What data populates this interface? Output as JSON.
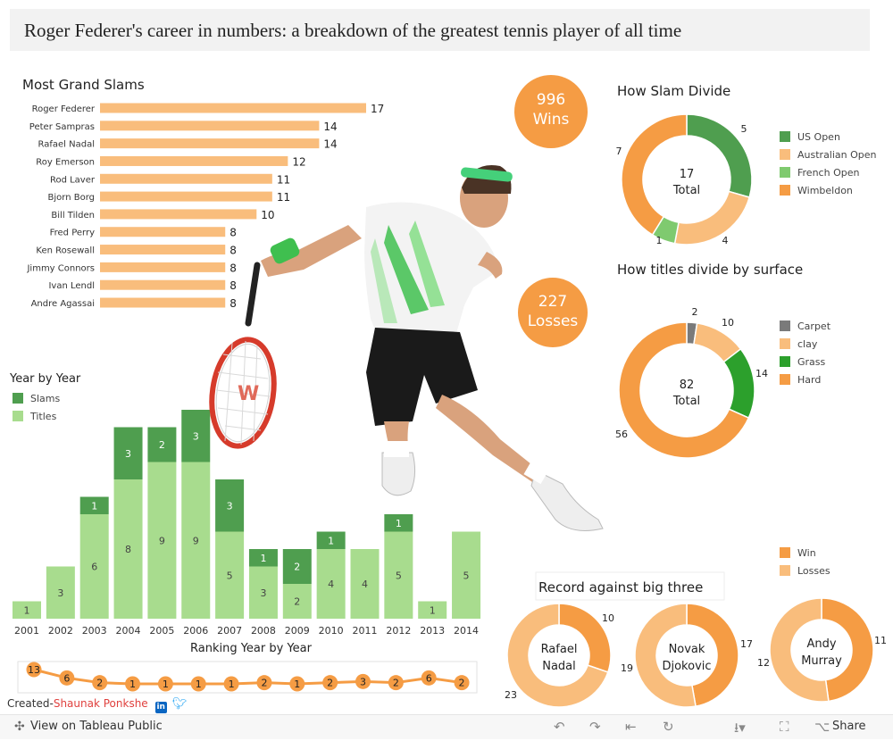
{
  "title": "Roger Federer's career in numbers: a breakdown of the greatest tennis player of all time",
  "stats": {
    "wins_value": "996",
    "wins_label": "Wins",
    "losses_value": "227",
    "losses_label": "Losses"
  },
  "colors": {
    "light_orange": "#f9bd7c",
    "orange": "#f59c44",
    "dark_green": "#4f9e4f",
    "light_green": "#a8dc8e",
    "medium_green": "#7fca6f",
    "grass_green": "#2ca02c",
    "gray": "#7a7a7a"
  },
  "credit": {
    "prefix": "Created-",
    "name": "Shaunak Ponkshe"
  },
  "footer": {
    "view_label": "View on Tableau Public",
    "share_label": "Share"
  },
  "chart_data": [
    {
      "id": "grand-slams",
      "type": "bar",
      "orientation": "horizontal",
      "title": "Most Grand Slams",
      "categories": [
        "Roger Federer",
        "Peter Sampras",
        "Rafael Nadal",
        "Roy Emerson",
        "Rod Laver",
        "Bjorn Borg",
        "Bill Tilden",
        "Fred Perry",
        "Ken Rosewall",
        "Jimmy Connors",
        "Ivan Lendl",
        "Andre Agassai"
      ],
      "values": [
        17,
        14,
        14,
        12,
        11,
        11,
        10,
        8,
        8,
        8,
        8,
        8
      ],
      "xlim": [
        0,
        17
      ],
      "grid": false
    },
    {
      "id": "slam-divide",
      "type": "pie",
      "style": "donut",
      "title": "How Slam Divide",
      "center_value": "17",
      "center_label": "Total",
      "slices": [
        {
          "name": "US Open",
          "value": 5,
          "color": "#4f9e4f"
        },
        {
          "name": "Australian Open",
          "value": 4,
          "color": "#f9bd7c"
        },
        {
          "name": "French Open",
          "value": 1,
          "color": "#7fca6f"
        },
        {
          "name": "Wimbeldon",
          "value": 7,
          "color": "#f59c44"
        }
      ],
      "legend": "right"
    },
    {
      "id": "surface-divide",
      "type": "pie",
      "style": "donut",
      "title": "How titles divide by surface",
      "center_value": "82",
      "center_label": "Total",
      "slices": [
        {
          "name": "Carpet",
          "value": 2,
          "color": "#7a7a7a"
        },
        {
          "name": "clay",
          "value": 10,
          "color": "#f9bd7c"
        },
        {
          "name": "Grass",
          "value": 14,
          "color": "#2ca02c"
        },
        {
          "name": "Hard",
          "value": 56,
          "color": "#f59c44"
        }
      ],
      "legend": "right"
    },
    {
      "id": "year-by-year",
      "type": "bar",
      "stacked": true,
      "title": "Year by Year",
      "categories": [
        "2001",
        "2002",
        "2003",
        "2004",
        "2005",
        "2006",
        "2007",
        "2008",
        "2009",
        "2010",
        "2011",
        "2012",
        "2013",
        "2014"
      ],
      "series": [
        {
          "name": "Titles",
          "values": [
            1,
            3,
            6,
            8,
            9,
            9,
            5,
            3,
            2,
            4,
            4,
            5,
            1,
            5
          ],
          "color": "#a8dc8e"
        },
        {
          "name": "Slams",
          "values": [
            0,
            0,
            1,
            3,
            2,
            3,
            3,
            1,
            2,
            1,
            0,
            1,
            0,
            0
          ],
          "color": "#4f9e4f"
        }
      ],
      "legend": "top-left",
      "grid": false
    },
    {
      "id": "ranking",
      "type": "line",
      "title": "Ranking Year by Year",
      "x": [
        "2001",
        "2002",
        "2003",
        "2004",
        "2005",
        "2006",
        "2007",
        "2008",
        "2009",
        "2010",
        "2011",
        "2012",
        "2013",
        "2014"
      ],
      "values": [
        13,
        6,
        2,
        1,
        1,
        1,
        1,
        2,
        1,
        2,
        3,
        2,
        6,
        2
      ]
    },
    {
      "id": "big-three",
      "type": "pie",
      "style": "donut",
      "title": "Record against big three",
      "legend": [
        {
          "name": "Win",
          "color": "#f59c44"
        },
        {
          "name": "Losses",
          "color": "#f9bd7c"
        }
      ],
      "opponents": [
        {
          "first": "Rafael",
          "last": "Nadal",
          "wins": 10,
          "losses": 23
        },
        {
          "first": "Novak",
          "last": "Djokovic",
          "wins": 17,
          "losses": 19
        },
        {
          "first": "Andy",
          "last": "Murray",
          "wins": 11,
          "losses": 12
        }
      ]
    }
  ]
}
